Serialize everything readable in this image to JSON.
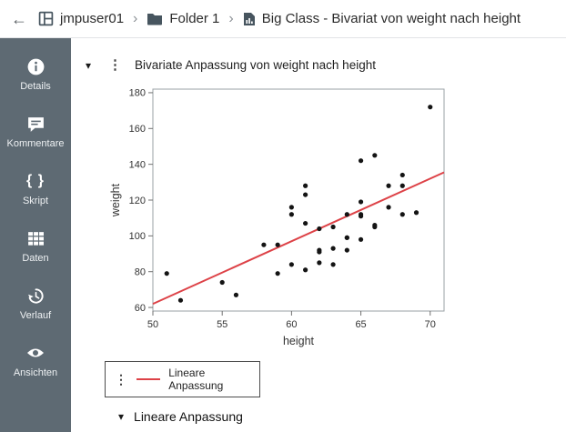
{
  "breadcrumb": {
    "user": "jmpuser01",
    "folder": "Folder 1",
    "file": "Big Class - Bivariat von weight nach height",
    "separator": "›"
  },
  "icons": {
    "back": "←",
    "menu_dots": "⋮",
    "disclosure": "▾",
    "script": "{ }",
    "names": [
      "back-icon",
      "workspace-icon",
      "folder-icon",
      "report-file-icon",
      "info-icon",
      "comment-icon",
      "script-icon",
      "data-grid-icon",
      "history-icon",
      "eye-icon",
      "menu-dots-icon",
      "disclosure-triangle-icon"
    ]
  },
  "sidebar": {
    "items": [
      {
        "label": "Details"
      },
      {
        "label": "Kommentare"
      },
      {
        "label": "Skript"
      },
      {
        "label": "Daten"
      },
      {
        "label": "Verlauf"
      },
      {
        "label": "Ansichten"
      }
    ]
  },
  "report": {
    "title": "Bivariate Anpassung von weight nach height",
    "section_label": "Lineare Anpassung"
  },
  "chart_data": {
    "type": "scatter",
    "title": "Bivariate Anpassung von weight nach height",
    "xlabel": "height",
    "ylabel": "weight",
    "xlim": [
      50,
      71
    ],
    "ylim": [
      58,
      182
    ],
    "x_ticks": [
      50,
      55,
      60,
      65,
      70
    ],
    "y_ticks": [
      60,
      80,
      100,
      120,
      140,
      160,
      180
    ],
    "grid": false,
    "point_color": "#141414",
    "points": [
      [
        59,
        95
      ],
      [
        61,
        123
      ],
      [
        55,
        74
      ],
      [
        66,
        145
      ],
      [
        52,
        64
      ],
      [
        60,
        84
      ],
      [
        61,
        128
      ],
      [
        51,
        79
      ],
      [
        60,
        112
      ],
      [
        61,
        107
      ],
      [
        56,
        67
      ],
      [
        65,
        98
      ],
      [
        63,
        105
      ],
      [
        58,
        95
      ],
      [
        59,
        79
      ],
      [
        61,
        81
      ],
      [
        62,
        91
      ],
      [
        65,
        142
      ],
      [
        63,
        84
      ],
      [
        62,
        85
      ],
      [
        63,
        93
      ],
      [
        64,
        99
      ],
      [
        65,
        119
      ],
      [
        64,
        92
      ],
      [
        68,
        112
      ],
      [
        64,
        99
      ],
      [
        69,
        113
      ],
      [
        62,
        92
      ],
      [
        64,
        112
      ],
      [
        67,
        128
      ],
      [
        65,
        111
      ],
      [
        66,
        105
      ],
      [
        62,
        104
      ],
      [
        66,
        106
      ],
      [
        65,
        112
      ],
      [
        60,
        116
      ],
      [
        68,
        128
      ],
      [
        67,
        116
      ],
      [
        68,
        134
      ],
      [
        70,
        172
      ]
    ],
    "fit_line": {
      "label": "Lineare Anpassung",
      "slope": 3.5,
      "intercept": -113.0,
      "color": "#dd4247"
    }
  },
  "colors": {
    "sidebar_bg": "#5e6a73",
    "accent_red": "#dd4247",
    "icon_slate": "#47555f"
  }
}
